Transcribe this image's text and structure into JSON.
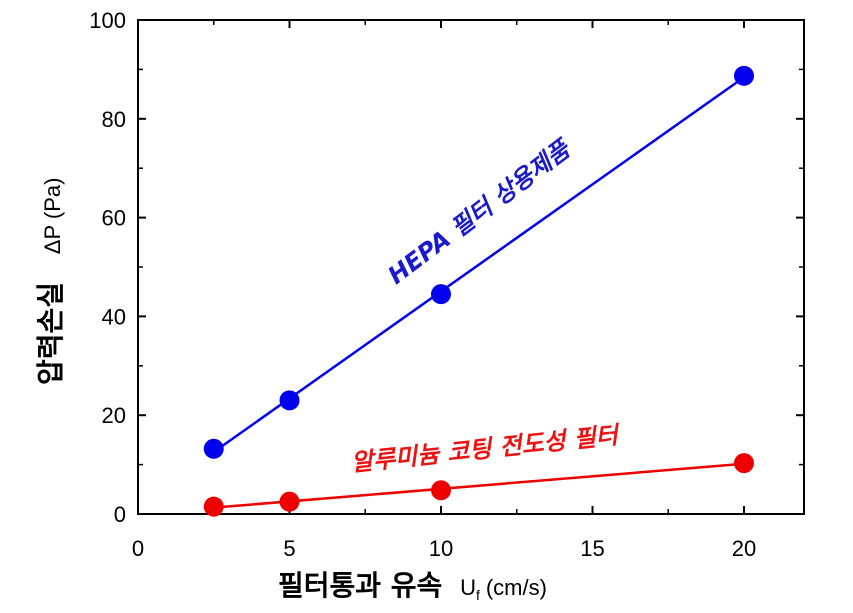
{
  "chart_data": {
    "type": "scatter",
    "x": [
      2.5,
      5,
      10,
      20
    ],
    "series": [
      {
        "name": "HEPA 필터 상용제품",
        "values": [
          13.2,
          23.0,
          44.5,
          88.7
        ],
        "color": "#0000ee"
      },
      {
        "name": "알루미늄 코팅 전도성 필터",
        "values": [
          1.5,
          2.5,
          4.8,
          10.3
        ],
        "color": "#ee0000"
      }
    ],
    "xlabel_main": "필터통과 유속",
    "xlabel_unit": "U",
    "xlabel_unit_sub": "f",
    "xlabel_unit_tail": "(cm/s)",
    "ylabel_main": "압력손실",
    "ylabel_unit": "ΔP (Pa)",
    "xlim": [
      0,
      22
    ],
    "ylim": [
      0,
      100
    ],
    "xticks": [
      "0",
      "5",
      "10",
      "15",
      "20"
    ],
    "yticks": [
      "0",
      "20",
      "40",
      "60",
      "80",
      "100"
    ],
    "grid": false,
    "legend": "none (series labeled inline)",
    "fit_lines": true
  }
}
